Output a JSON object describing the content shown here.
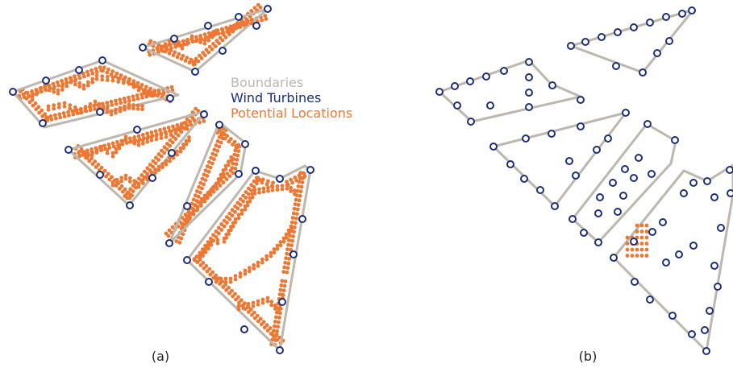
{
  "legend": {
    "boundaries_label": "Boundaries",
    "turbines_label": "Wind Turbines",
    "locations_label": "Potential Locations"
  },
  "panels": {
    "left_caption": "(a)",
    "right_caption": "(b)"
  },
  "colors": {
    "boundary": "#BDB7AE",
    "turbine": "#1B2F7A",
    "location": "#EE7733",
    "caption": "#222222"
  }
}
